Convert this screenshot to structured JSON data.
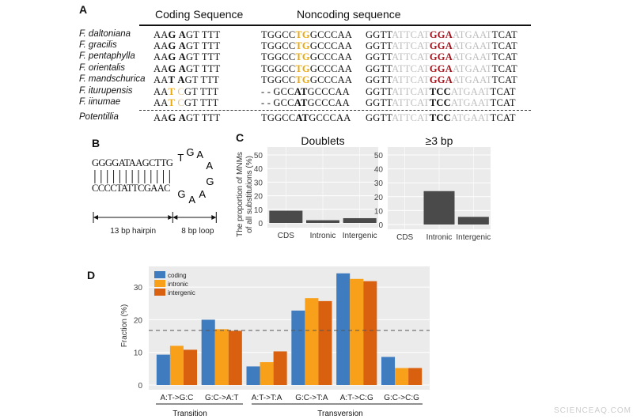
{
  "panel_a": {
    "label": "A",
    "header_coding": "Coding Sequence",
    "header_noncoding": "Noncoding sequence",
    "rows": [
      {
        "species": "F. daltoniana",
        "coding": [
          [
            "AA",
            "n"
          ],
          [
            "G",
            "b"
          ],
          [
            " ",
            "n"
          ],
          [
            "A",
            "b"
          ],
          [
            "GT TTT",
            "n"
          ]
        ],
        "nc1": [
          [
            "TGGCC",
            "n"
          ],
          [
            "TG",
            "y"
          ],
          [
            "GCCCAA",
            "n"
          ]
        ],
        "nc2": [
          [
            "GGTT",
            "n"
          ],
          [
            "ATTCAT",
            "g"
          ],
          [
            "GGA",
            "r"
          ],
          [
            "ATGAAT",
            "g"
          ],
          [
            "TCAT",
            "n"
          ]
        ]
      },
      {
        "species": "F. gracilis",
        "coding": [
          [
            "AA",
            "n"
          ],
          [
            "G",
            "b"
          ],
          [
            " ",
            "n"
          ],
          [
            "A",
            "b"
          ],
          [
            "GT TTT",
            "n"
          ]
        ],
        "nc1": [
          [
            "TGGCC",
            "n"
          ],
          [
            "TG",
            "y"
          ],
          [
            "GCCCAA",
            "n"
          ]
        ],
        "nc2": [
          [
            "GGTT",
            "n"
          ],
          [
            "ATTCAT",
            "g"
          ],
          [
            "GGA",
            "r"
          ],
          [
            "ATGAAT",
            "g"
          ],
          [
            "TCAT",
            "n"
          ]
        ]
      },
      {
        "species": "F. pentaphylla",
        "coding": [
          [
            "AA",
            "n"
          ],
          [
            "G",
            "b"
          ],
          [
            " ",
            "n"
          ],
          [
            "A",
            "b"
          ],
          [
            "GT TTT",
            "n"
          ]
        ],
        "nc1": [
          [
            "TGGCC",
            "n"
          ],
          [
            "TG",
            "y"
          ],
          [
            "GCCCAA",
            "n"
          ]
        ],
        "nc2": [
          [
            "GGTT",
            "n"
          ],
          [
            "ATTCAT",
            "g"
          ],
          [
            "GGA",
            "r"
          ],
          [
            "ATGAAT",
            "g"
          ],
          [
            "TCAT",
            "n"
          ]
        ]
      },
      {
        "species": "F. orientalis",
        "coding": [
          [
            "AA",
            "n"
          ],
          [
            "G",
            "b"
          ],
          [
            " ",
            "n"
          ],
          [
            "A",
            "b"
          ],
          [
            "GT TTT",
            "n"
          ]
        ],
        "nc1": [
          [
            "TGGCC",
            "n"
          ],
          [
            "TG",
            "y"
          ],
          [
            "GCCCAA",
            "n"
          ]
        ],
        "nc2": [
          [
            "GGTT",
            "n"
          ],
          [
            "ATTCAT",
            "g"
          ],
          [
            "GGA",
            "r"
          ],
          [
            "ATGAAT",
            "g"
          ],
          [
            "TCAT",
            "n"
          ]
        ]
      },
      {
        "species": "F. mandschurica",
        "coding": [
          [
            "AA",
            "n"
          ],
          [
            "T",
            "b"
          ],
          [
            " ",
            "n"
          ],
          [
            "A",
            "b"
          ],
          [
            "GT TTT",
            "n"
          ]
        ],
        "nc1": [
          [
            "TGGCC",
            "n"
          ],
          [
            "TG",
            "y"
          ],
          [
            "GCCCAA",
            "n"
          ]
        ],
        "nc2": [
          [
            "GGTT",
            "n"
          ],
          [
            "ATTCAT",
            "g"
          ],
          [
            "GGA",
            "r"
          ],
          [
            "ATGAAT",
            "g"
          ],
          [
            "TCAT",
            "n"
          ]
        ]
      },
      {
        "species": "F. iturupensis",
        "coding": [
          [
            "AA",
            "n"
          ],
          [
            "T",
            "y"
          ],
          [
            " ",
            "n"
          ],
          [
            "C",
            "o"
          ],
          [
            "GT TTT",
            "n"
          ]
        ],
        "nc1": [
          [
            "- - GCC",
            "n"
          ],
          [
            "AT",
            "b"
          ],
          [
            "GCCCAA",
            "n"
          ]
        ],
        "nc2": [
          [
            "GGTT",
            "n"
          ],
          [
            "ATTCAT",
            "g"
          ],
          [
            "TCC",
            "b"
          ],
          [
            "ATGAAT",
            "g"
          ],
          [
            "TCAT",
            "n"
          ]
        ]
      },
      {
        "species": "F. iinumae",
        "coding": [
          [
            "AA",
            "n"
          ],
          [
            "T",
            "y"
          ],
          [
            " ",
            "n"
          ],
          [
            "C",
            "o"
          ],
          [
            "GT TTT",
            "n"
          ]
        ],
        "nc1": [
          [
            "- - GCC",
            "n"
          ],
          [
            "AT",
            "b"
          ],
          [
            "GCCCAA",
            "n"
          ]
        ],
        "nc2": [
          [
            "GGTT",
            "n"
          ],
          [
            "ATTCAT",
            "g"
          ],
          [
            "TCC",
            "b"
          ],
          [
            "ATGAAT",
            "g"
          ],
          [
            "TCAT",
            "n"
          ]
        ]
      },
      {
        "species": "Potentillia",
        "coding": [
          [
            "AA",
            "n"
          ],
          [
            "G",
            "b"
          ],
          [
            " ",
            "n"
          ],
          [
            "A",
            "b"
          ],
          [
            "GT TTT",
            "n"
          ]
        ],
        "nc1": [
          [
            "TGGCC",
            "n"
          ],
          [
            "AT",
            "b"
          ],
          [
            "GCCCAA",
            "n"
          ]
        ],
        "nc2": [
          [
            "GGTT",
            "n"
          ],
          [
            "ATTCAT",
            "g"
          ],
          [
            "TCC",
            "b"
          ],
          [
            "ATGAAT",
            "g"
          ],
          [
            "TCAT",
            "n"
          ]
        ]
      }
    ]
  },
  "panel_b": {
    "label": "B",
    "top_strand": "GGGGATAAGCTTG",
    "bottom_strand": "CCCCTATTCGAAC",
    "loop": [
      "T",
      "G",
      "A",
      "A",
      "G",
      "A",
      "A",
      "G"
    ],
    "hairpin_label": "13 bp hairpin",
    "loop_label": "8 bp loop"
  },
  "panel_c_label": "C",
  "panel_d_label": "D",
  "chart_data": [
    {
      "type": "bar",
      "title": "Doublets",
      "ylabel": "The proportion of MNMs of all substitutions (%)",
      "categories": [
        "CDS",
        "Intronic",
        "Intergenic"
      ],
      "values": [
        9,
        2,
        3.5
      ],
      "ylim": [
        0,
        52
      ],
      "yticks": [
        0,
        10,
        20,
        30,
        40,
        50
      ],
      "grid": true,
      "color": "#4a4a4a"
    },
    {
      "type": "bar",
      "title": "≥3 bp",
      "categories": [
        "CDS",
        "Intronic",
        "Intergenic"
      ],
      "values": [
        0,
        24,
        5.5
      ],
      "ylim": [
        0,
        52
      ],
      "yticks": [
        0,
        10,
        20,
        30,
        40,
        50
      ],
      "grid": true,
      "color": "#4a4a4a"
    },
    {
      "type": "bar",
      "ylabel": "Fraction (%)",
      "categories": [
        "A:T->G:C",
        "G:C->A:T",
        "A:T->T:A",
        "G:C->T:A",
        "A:T->C:G",
        "G:C->C:G"
      ],
      "series": [
        {
          "name": "coding",
          "color": "#3f7cbf",
          "values": [
            9.3,
            20,
            5.7,
            22.8,
            34.2,
            8.6
          ]
        },
        {
          "name": "intronic",
          "color": "#f9a01b",
          "values": [
            12,
            17.1,
            7,
            26.6,
            32.5,
            5.2
          ]
        },
        {
          "name": "intergenic",
          "color": "#d9600f",
          "values": [
            10.8,
            16.6,
            10.3,
            25.7,
            31.8,
            5.2
          ]
        }
      ],
      "reference_line": 16.7,
      "ylim": [
        0,
        36
      ],
      "yticks": [
        0,
        10,
        20,
        30
      ],
      "grid": true,
      "legend": "top-left",
      "groups": [
        {
          "label": "Transition",
          "categories": [
            "A:T->G:C",
            "G:C->A:T"
          ]
        },
        {
          "label": "Transversion",
          "categories": [
            "A:T->T:A",
            "G:C->T:A",
            "A:T->C:G",
            "G:C->C:G"
          ]
        }
      ]
    }
  ],
  "watermark": "SCIENCEAQ.COM"
}
